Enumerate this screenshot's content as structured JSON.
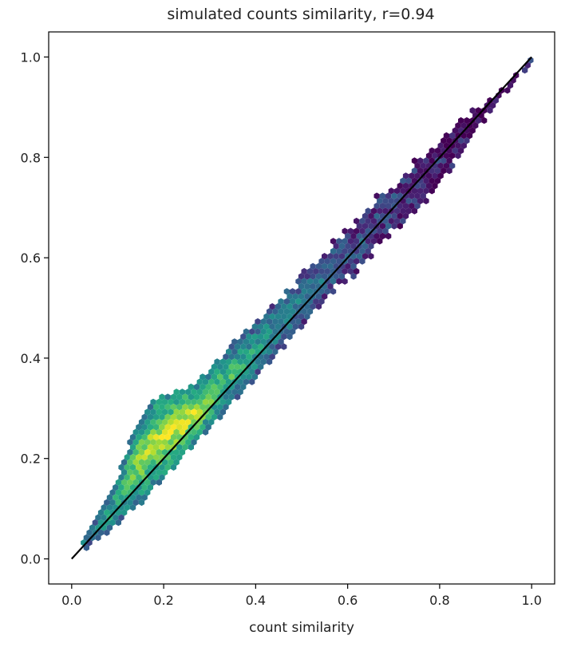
{
  "chart_data": {
    "type": "hexbin",
    "title": "simulated counts similarity, r=0.94",
    "xlabel": "count similarity",
    "ylabel": "",
    "xlim": [
      -0.05,
      1.05
    ],
    "ylim": [
      -0.05,
      1.05
    ],
    "x_ticks": [
      "0.0",
      "0.2",
      "0.4",
      "0.6",
      "0.8",
      "1.0"
    ],
    "y_ticks": [
      "0.0",
      "0.2",
      "0.4",
      "0.6",
      "0.8",
      "1.0"
    ],
    "grid": false,
    "colormap": "viridis",
    "reference_line": {
      "x": [
        0,
        1
      ],
      "y": [
        0,
        1
      ],
      "color": "#000000"
    },
    "statistic": {
      "name": "r",
      "value": 0.94
    },
    "band": [
      {
        "x": 0.03,
        "lower": 0.02,
        "upper": 0.05,
        "density": 0.45
      },
      {
        "x": 0.06,
        "lower": 0.04,
        "upper": 0.09,
        "density": 0.55
      },
      {
        "x": 0.09,
        "lower": 0.06,
        "upper": 0.14,
        "density": 0.65
      },
      {
        "x": 0.12,
        "lower": 0.09,
        "upper": 0.22,
        "density": 0.78
      },
      {
        "x": 0.15,
        "lower": 0.11,
        "upper": 0.29,
        "density": 0.88
      },
      {
        "x": 0.18,
        "lower": 0.14,
        "upper": 0.32,
        "density": 0.95
      },
      {
        "x": 0.21,
        "lower": 0.17,
        "upper": 0.33,
        "density": 1.0
      },
      {
        "x": 0.24,
        "lower": 0.2,
        "upper": 0.34,
        "density": 1.0
      },
      {
        "x": 0.27,
        "lower": 0.23,
        "upper": 0.35,
        "density": 0.95
      },
      {
        "x": 0.3,
        "lower": 0.26,
        "upper": 0.38,
        "density": 0.85
      },
      {
        "x": 0.33,
        "lower": 0.29,
        "upper": 0.41,
        "density": 0.75
      },
      {
        "x": 0.36,
        "lower": 0.32,
        "upper": 0.44,
        "density": 0.68
      },
      {
        "x": 0.4,
        "lower": 0.36,
        "upper": 0.47,
        "density": 0.6
      },
      {
        "x": 0.44,
        "lower": 0.4,
        "upper": 0.51,
        "density": 0.52
      },
      {
        "x": 0.48,
        "lower": 0.44,
        "upper": 0.55,
        "density": 0.45
      },
      {
        "x": 0.52,
        "lower": 0.48,
        "upper": 0.59,
        "density": 0.4
      },
      {
        "x": 0.56,
        "lower": 0.52,
        "upper": 0.63,
        "density": 0.35
      },
      {
        "x": 0.6,
        "lower": 0.55,
        "upper": 0.66,
        "density": 0.3
      },
      {
        "x": 0.64,
        "lower": 0.59,
        "upper": 0.7,
        "density": 0.27
      },
      {
        "x": 0.68,
        "lower": 0.63,
        "upper": 0.74,
        "density": 0.24
      },
      {
        "x": 0.72,
        "lower": 0.66,
        "upper": 0.77,
        "density": 0.2
      },
      {
        "x": 0.76,
        "lower": 0.7,
        "upper": 0.81,
        "density": 0.16
      },
      {
        "x": 0.8,
        "lower": 0.75,
        "upper": 0.84,
        "density": 0.12
      },
      {
        "x": 0.84,
        "lower": 0.79,
        "upper": 0.87,
        "density": 0.08
      },
      {
        "x": 0.88,
        "lower": 0.85,
        "upper": 0.9,
        "density": 0.05
      },
      {
        "x": 0.92,
        "lower": 0.9,
        "upper": 0.93,
        "density": 0.04
      },
      {
        "x": 0.96,
        "lower": 0.94,
        "upper": 0.96,
        "density": 0.05
      },
      {
        "x": 1.0,
        "lower": 0.99,
        "upper": 1.0,
        "density": 0.4
      }
    ]
  }
}
